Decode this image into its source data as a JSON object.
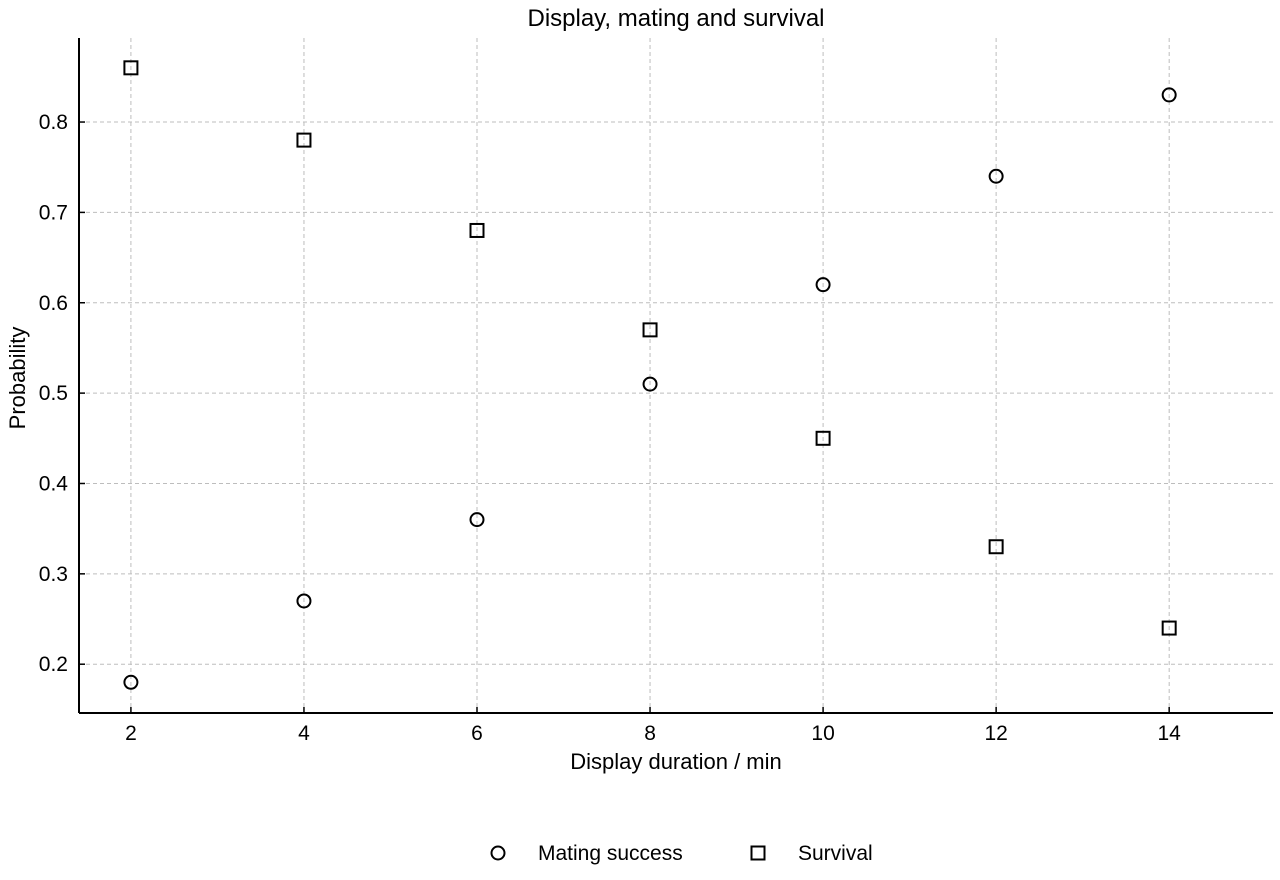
{
  "chart_data": {
    "type": "scatter",
    "title": "Display, mating and survival",
    "xlabel": "Display duration / min",
    "ylabel": "Probability",
    "xlim": [
      1.4,
      15.2
    ],
    "ylim": [
      0.146,
      0.893
    ],
    "xticks": [
      2,
      4,
      6,
      8,
      10,
      12,
      14
    ],
    "yticks": [
      0.2,
      0.3,
      0.4,
      0.5,
      0.6,
      0.7,
      0.8
    ],
    "grid": true,
    "legend_position": "bottom-center",
    "series": [
      {
        "name": "Mating success",
        "marker": "circle",
        "color": "#000000",
        "x": [
          2,
          4,
          6,
          8,
          10,
          12,
          14
        ],
        "y": [
          0.18,
          0.27,
          0.36,
          0.51,
          0.62,
          0.74,
          0.83
        ]
      },
      {
        "name": "Survival",
        "marker": "square",
        "color": "#000000",
        "x": [
          2,
          4,
          6,
          8,
          10,
          12,
          14
        ],
        "y": [
          0.86,
          0.78,
          0.68,
          0.57,
          0.45,
          0.33,
          0.24
        ]
      }
    ]
  }
}
